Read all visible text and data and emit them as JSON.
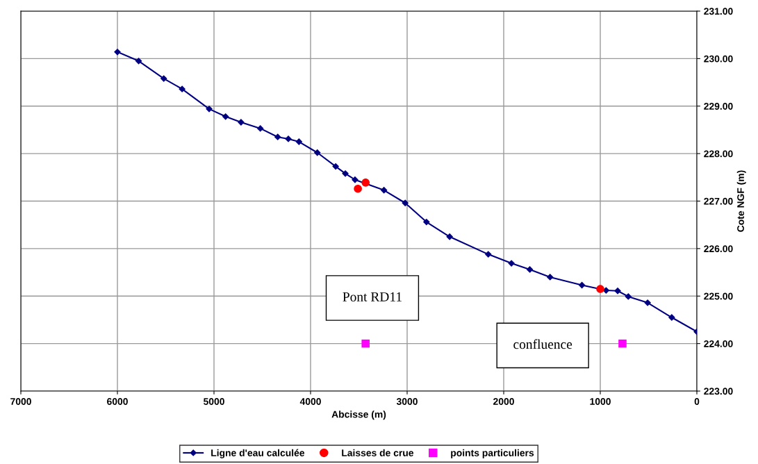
{
  "chart_data": {
    "type": "line",
    "xlabel": "Abcisse (m)",
    "ylabel": "Cote NGF (m)",
    "xlim": [
      7000,
      0
    ],
    "xticks": [
      7000,
      6000,
      5000,
      4000,
      3000,
      2000,
      1000,
      0
    ],
    "ylim": [
      223,
      231
    ],
    "yticks": [
      {
        "value": 223,
        "label": "223.00"
      },
      {
        "value": 224,
        "label": "224.00"
      },
      {
        "value": 225,
        "label": "225.00"
      },
      {
        "value": 226,
        "label": "226.00"
      },
      {
        "value": 227,
        "label": "227.00"
      },
      {
        "value": 228,
        "label": "228.00"
      },
      {
        "value": 229,
        "label": "229.00"
      },
      {
        "value": 230,
        "label": "230.00"
      },
      {
        "value": 231,
        "label": "231.00"
      }
    ],
    "grid": true,
    "legend": "bottom",
    "series": [
      {
        "name": "Ligne d'eau calculée",
        "color": "#000080",
        "marker": "diamond",
        "x": [
          6000,
          5780,
          5520,
          5330,
          5050,
          4880,
          4720,
          4520,
          4340,
          4230,
          4120,
          3930,
          3740,
          3640,
          3540,
          3240,
          3020,
          2800,
          2560,
          2160,
          1920,
          1730,
          1520,
          1190,
          940,
          820,
          710,
          510,
          260,
          0
        ],
        "values": [
          230.14,
          229.95,
          229.58,
          229.36,
          228.94,
          228.78,
          228.66,
          228.53,
          228.35,
          228.31,
          228.25,
          228.02,
          227.73,
          227.58,
          227.45,
          227.23,
          226.96,
          226.56,
          226.25,
          225.88,
          225.69,
          225.56,
          225.4,
          225.23,
          225.12,
          225.11,
          224.99,
          224.86,
          224.55,
          224.25
        ]
      },
      {
        "name": "Laisses de crue",
        "type": "scatter",
        "color": "#ff0000",
        "marker": "circle",
        "x": [
          3510,
          3430,
          1000
        ],
        "values": [
          227.26,
          227.39,
          225.15
        ]
      },
      {
        "name": "points particuliers",
        "type": "scatter",
        "color": "#ff00ff",
        "marker": "square",
        "x": [
          3430,
          770
        ],
        "values": [
          224.0,
          224.0
        ]
      }
    ],
    "annotations": [
      "Pont RD11",
      "confluence"
    ]
  }
}
